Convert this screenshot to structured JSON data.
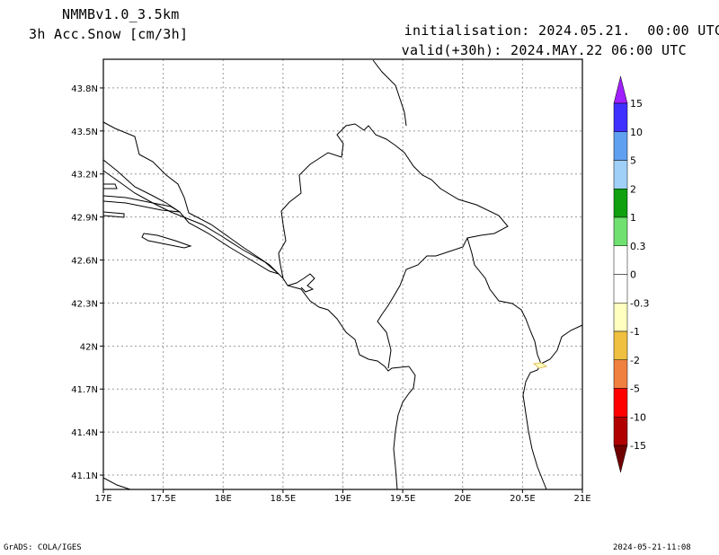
{
  "header": {
    "model": "NMMBv1.0_3.5km",
    "variable": "3h Acc.Snow [cm/3h]",
    "init_label": "initialisation:",
    "init_value": "2024.05.21.  00:00 UTC",
    "valid_label": "valid(+30h):",
    "valid_value": "2024.MAY.22 06:00 UTC"
  },
  "footer": {
    "left": "GrADS: COLA/IGES",
    "right": "2024-05-21-11:08"
  },
  "map": {
    "lat_labels": [
      "43.8N",
      "43.5N",
      "43.2N",
      "42.9N",
      "42.6N",
      "42.3N",
      "42N",
      "41.7N",
      "41.4N",
      "41.1N"
    ],
    "lat_values": [
      43.8,
      43.5,
      43.2,
      42.9,
      42.6,
      42.3,
      42.0,
      41.7,
      41.4,
      41.1
    ],
    "lon_labels": [
      "17E",
      "17.5E",
      "18E",
      "18.5E",
      "19E",
      "19.5E",
      "20E",
      "20.5E",
      "21E"
    ],
    "lon_values": [
      17,
      17.5,
      18,
      18.5,
      19,
      19.5,
      20,
      20.5,
      21
    ],
    "lon_range": [
      17,
      21
    ],
    "lat_range": [
      41.0,
      44.0
    ]
  },
  "colorbar": {
    "labels": [
      "15",
      "10",
      "5",
      "2",
      "1",
      "0.3",
      "0",
      "-0.3",
      "-1",
      "-2",
      "-5",
      "-10",
      "-15"
    ],
    "colors": [
      "#4030ff",
      "#60a0f0",
      "#a0d0f8",
      "#10a010",
      "#70e070",
      "#ffffff",
      "#ffffff",
      "#ffffc0",
      "#f0c040",
      "#f08040",
      "#ff0000",
      "#b00000"
    ],
    "top_color": "#a020ff",
    "bottom_color": "#700000"
  }
}
